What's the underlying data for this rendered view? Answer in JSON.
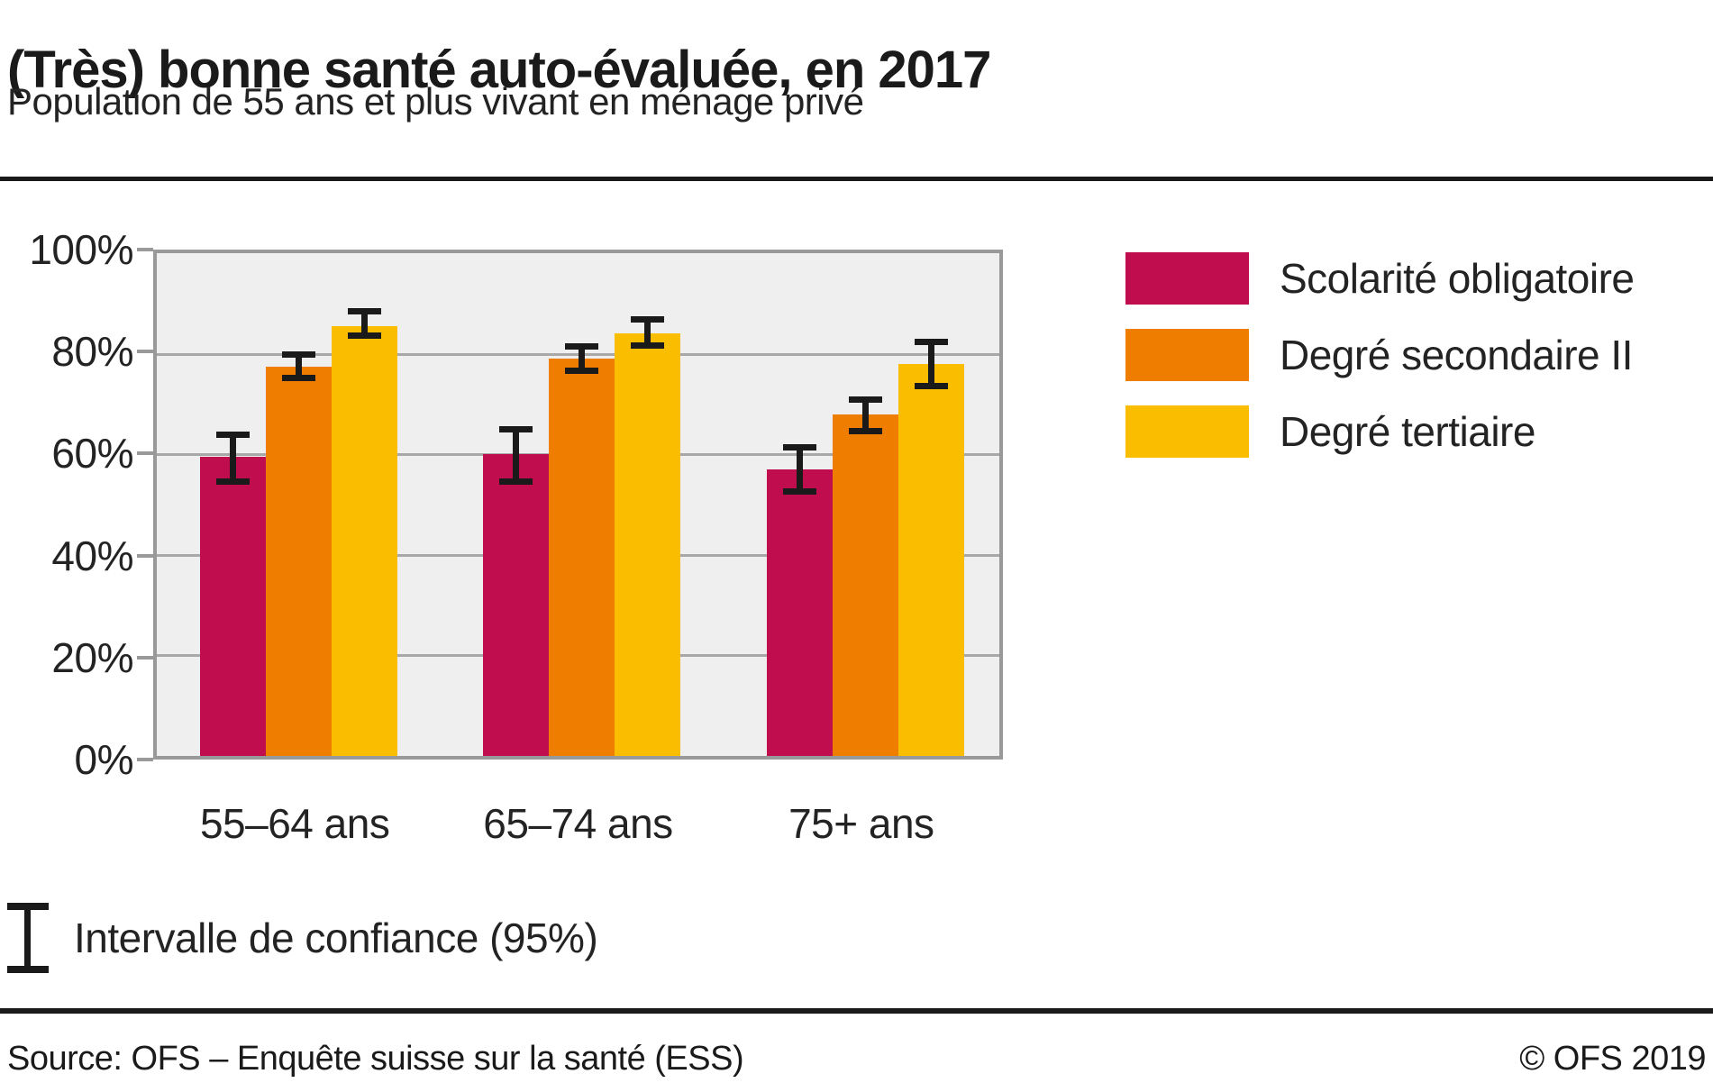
{
  "header": {
    "title": "(Très) bonne santé auto-évaluée, en 2017",
    "subtitle": "Population de 55 ans et plus vivant en ménage privé"
  },
  "chart_data": {
    "type": "bar",
    "title": "(Très) bonne santé auto-évaluée, en 2017",
    "subtitle": "Population de 55 ans et plus vivant en ménage privé",
    "categories": [
      "55–64 ans",
      "65–74 ans",
      "75+ ans"
    ],
    "series": [
      {
        "name": "Scolarité obligatoire",
        "color": "#BF0D4E",
        "values": [
          59.5,
          60,
          57
        ],
        "ci_low": [
          54.5,
          54.5,
          52.5
        ],
        "ci_high": [
          64,
          65,
          61.5
        ]
      },
      {
        "name": "Degré secondaire II",
        "color": "#EF7D00",
        "values": [
          77.5,
          79,
          68
        ],
        "ci_low": [
          75,
          76.5,
          64.5
        ],
        "ci_high": [
          80,
          81.5,
          71
        ]
      },
      {
        "name": "Degré tertiaire",
        "color": "#FBBD00",
        "values": [
          85.5,
          84,
          78
        ],
        "ci_low": [
          83.5,
          81.5,
          73.5
        ],
        "ci_high": [
          88.5,
          87,
          82.5
        ]
      }
    ],
    "ylim": [
      0,
      100
    ],
    "yticks": [
      0,
      20,
      40,
      60,
      80,
      100
    ],
    "ytick_labels": [
      "0%",
      "20%",
      "40%",
      "60%",
      "80%",
      "100%"
    ],
    "grid": true,
    "legend_position": "right",
    "error_bars_note": "Intervalle de confiance (95%)"
  },
  "annotations": {
    "ci_note": "Intervalle de confiance (95%)"
  },
  "footer": {
    "source": "Source: OFS – Enquête suisse sur la santé (ESS)",
    "copyright": "© OFS 2019"
  },
  "colors": {
    "plot_background": "#EFEFEF",
    "gridline": "#A8A8A8",
    "frame": "#999999",
    "error_bar": "#1A1A1A",
    "rule": "#1A1A1A"
  }
}
